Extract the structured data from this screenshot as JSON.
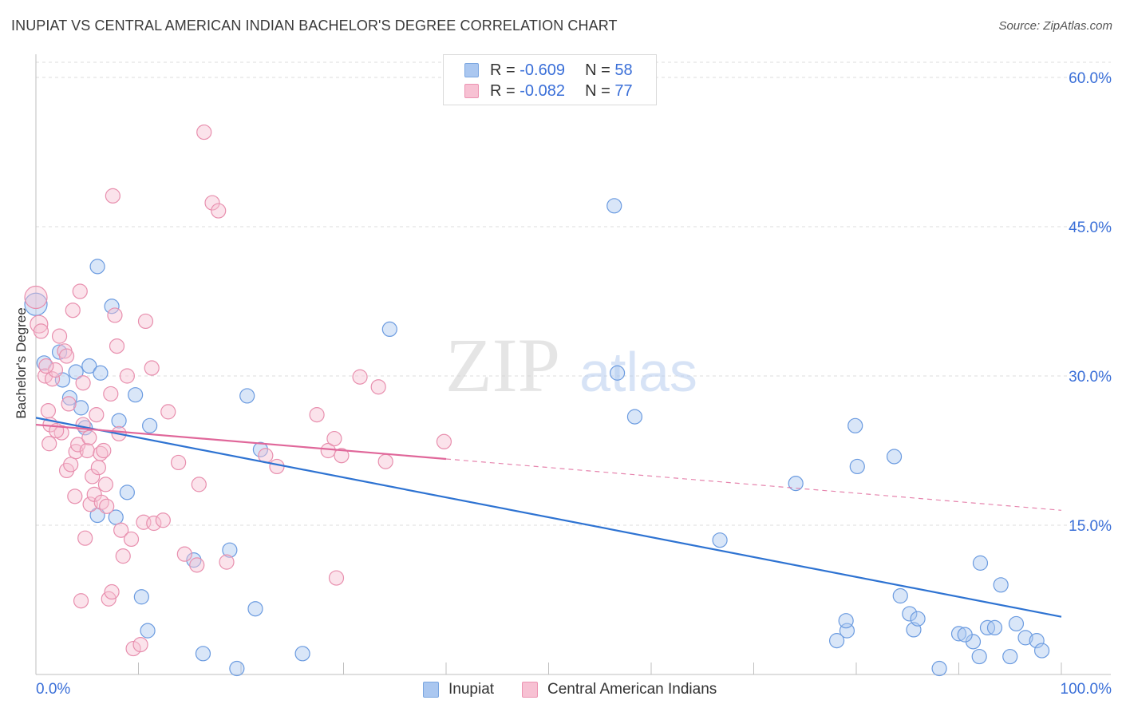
{
  "chart_data": {
    "type": "scatter",
    "title": "INUPIAT VS CENTRAL AMERICAN INDIAN BACHELOR'S DEGREE CORRELATION CHART",
    "source": "Source: ZipAtlas.com",
    "ylabel": "Bachelor's Degree",
    "xlim": [
      0,
      100
    ],
    "ylim": [
      0,
      60
    ],
    "x_tick_labels": [
      "0.0%",
      "100.0%"
    ],
    "y_ticks": [
      15,
      30,
      45,
      60
    ],
    "y_tick_labels": [
      "15.0%",
      "30.0%",
      "45.0%",
      "60.0%"
    ],
    "grid": true,
    "legend_placement": "bottom-center",
    "correlation_box": [
      {
        "r_label": "R =",
        "r_value": "-0.609",
        "n_label": "N =",
        "n_value": "58",
        "color": "#aac7f0",
        "border": "#7aa6e0"
      },
      {
        "r_label": "R =",
        "r_value": "-0.082",
        "n_label": "N =",
        "n_value": "77",
        "color": "#f7c1d3",
        "border": "#ec93b2"
      }
    ],
    "watermark": {
      "zip": "ZIP",
      "atlas": "atlas"
    },
    "series": [
      {
        "name": "Inupiat",
        "color": "#6b9be0",
        "fill": "rgba(170,199,240,0.45)",
        "line_color": "#2e73d2",
        "trend": {
          "x0": 0,
          "y0": 25.8,
          "x1": 100,
          "y1": 5.8,
          "dashed_from": null
        },
        "points": [
          [
            0,
            37.2,
            14
          ],
          [
            0.8,
            31.3,
            9
          ],
          [
            2.3,
            32.4,
            9
          ],
          [
            2.6,
            29.6,
            9
          ],
          [
            3.3,
            27.8,
            9
          ],
          [
            3.9,
            30.4,
            9
          ],
          [
            4.4,
            26.8,
            9
          ],
          [
            4.8,
            24.8,
            9
          ],
          [
            5.2,
            31.0,
            9
          ],
          [
            6.3,
            30.3,
            9
          ],
          [
            6.0,
            16.0,
            9
          ],
          [
            6.0,
            41.0,
            9
          ],
          [
            7.4,
            37.0,
            9
          ],
          [
            7.8,
            15.8,
            9
          ],
          [
            8.1,
            25.5,
            9
          ],
          [
            8.9,
            18.3,
            9
          ],
          [
            9.7,
            28.1,
            9
          ],
          [
            10.3,
            7.8,
            9
          ],
          [
            11.1,
            25.0,
            9
          ],
          [
            10.9,
            4.4,
            9
          ],
          [
            15.4,
            11.5,
            9
          ],
          [
            16.3,
            2.1,
            9
          ],
          [
            18.9,
            12.5,
            9
          ],
          [
            19.6,
            0.6,
            9
          ],
          [
            20.6,
            28.0,
            9
          ],
          [
            21.4,
            6.6,
            9
          ],
          [
            21.9,
            22.6,
            9
          ],
          [
            26.0,
            2.1,
            9
          ],
          [
            34.5,
            34.7,
            9
          ],
          [
            56.4,
            47.1,
            9
          ],
          [
            56.7,
            30.3,
            9
          ],
          [
            58.4,
            25.9,
            9
          ],
          [
            66.7,
            13.5,
            9
          ],
          [
            74.1,
            19.2,
            9
          ],
          [
            83.7,
            21.9,
            9
          ],
          [
            84.3,
            7.9,
            9
          ],
          [
            85.6,
            4.5,
            9
          ],
          [
            79.1,
            4.4,
            9
          ],
          [
            80.1,
            20.9,
            9
          ],
          [
            79.9,
            25.0,
            9
          ],
          [
            79.0,
            5.4,
            9
          ],
          [
            78.1,
            3.4,
            9
          ],
          [
            85.2,
            6.1,
            9
          ],
          [
            90.0,
            4.1,
            9
          ],
          [
            86.0,
            5.6,
            9
          ],
          [
            92.1,
            11.2,
            9
          ],
          [
            92.8,
            4.7,
            9
          ],
          [
            93.5,
            4.7,
            9
          ],
          [
            94.1,
            9.0,
            9
          ],
          [
            95.6,
            5.1,
            9
          ],
          [
            96.5,
            3.7,
            9
          ],
          [
            97.6,
            3.4,
            9
          ],
          [
            98.1,
            2.4,
            9
          ],
          [
            88.1,
            0.6,
            9
          ],
          [
            91.4,
            3.3,
            9
          ],
          [
            90.6,
            4.0,
            9
          ],
          [
            95.0,
            1.8,
            9
          ],
          [
            92.0,
            1.8,
            9
          ]
        ]
      },
      {
        "name": "Central American Indians",
        "color": "#e88fae",
        "fill": "rgba(247,193,211,0.45)",
        "line_color": "#e0679a",
        "trend": {
          "x0": 0,
          "y0": 25.1,
          "x1": 100,
          "y1": 16.5,
          "dashed_from": 40
        },
        "points": [
          [
            0,
            37.9,
            14
          ],
          [
            0.3,
            35.2,
            11
          ],
          [
            0.5,
            34.5,
            9
          ],
          [
            0.9,
            30.0,
            9
          ],
          [
            1.2,
            26.5,
            9
          ],
          [
            1.3,
            23.2,
            9
          ],
          [
            1.4,
            25.1,
            9
          ],
          [
            1.6,
            29.7,
            9
          ],
          [
            1.9,
            30.6,
            9
          ],
          [
            2.3,
            34.0,
            9
          ],
          [
            2.5,
            24.3,
            9
          ],
          [
            2.8,
            32.5,
            9
          ],
          [
            3.0,
            20.5,
            9
          ],
          [
            3.2,
            27.2,
            9
          ],
          [
            3.4,
            21.1,
            9
          ],
          [
            3.6,
            36.6,
            9
          ],
          [
            3.8,
            17.9,
            9
          ],
          [
            3.9,
            22.4,
            9
          ],
          [
            4.1,
            23.1,
            9
          ],
          [
            4.3,
            38.5,
            9
          ],
          [
            4.4,
            7.4,
            9
          ],
          [
            4.6,
            25.1,
            9
          ],
          [
            4.8,
            13.7,
            9
          ],
          [
            5.0,
            22.5,
            9
          ],
          [
            5.2,
            23.8,
            9
          ],
          [
            5.3,
            17.1,
            9
          ],
          [
            5.5,
            19.9,
            9
          ],
          [
            5.7,
            18.1,
            9
          ],
          [
            5.9,
            26.1,
            9
          ],
          [
            6.1,
            20.8,
            9
          ],
          [
            6.3,
            22.2,
            9
          ],
          [
            6.4,
            17.3,
            9
          ],
          [
            6.6,
            22.5,
            9
          ],
          [
            6.8,
            19.1,
            9
          ],
          [
            6.9,
            16.9,
            9
          ],
          [
            7.1,
            7.6,
            9
          ],
          [
            7.3,
            28.2,
            9
          ],
          [
            7.5,
            48.1,
            9
          ],
          [
            7.7,
            36.1,
            9
          ],
          [
            7.9,
            33.0,
            9
          ],
          [
            8.1,
            24.2,
            9
          ],
          [
            8.3,
            14.5,
            9
          ],
          [
            8.5,
            11.9,
            9
          ],
          [
            8.9,
            30.0,
            9
          ],
          [
            9.3,
            13.6,
            9
          ],
          [
            9.5,
            2.6,
            9
          ],
          [
            10.2,
            3.0,
            9
          ],
          [
            10.5,
            15.3,
            9
          ],
          [
            10.7,
            35.5,
            9
          ],
          [
            11.3,
            30.8,
            9
          ],
          [
            11.5,
            15.2,
            9
          ],
          [
            12.4,
            15.5,
            9
          ],
          [
            12.9,
            26.4,
            9
          ],
          [
            13.9,
            21.3,
            9
          ],
          [
            14.5,
            12.1,
            9
          ],
          [
            15.7,
            11.0,
            9
          ],
          [
            15.9,
            19.1,
            9
          ],
          [
            16.4,
            54.5,
            9
          ],
          [
            17.2,
            47.4,
            9
          ],
          [
            17.8,
            46.6,
            9
          ],
          [
            18.6,
            11.3,
            9
          ],
          [
            22.4,
            22.0,
            9
          ],
          [
            23.5,
            20.9,
            9
          ],
          [
            27.4,
            26.1,
            9
          ],
          [
            28.5,
            22.5,
            9
          ],
          [
            29.1,
            23.7,
            9
          ],
          [
            29.3,
            9.7,
            9
          ],
          [
            29.8,
            22.0,
            9
          ],
          [
            31.6,
            29.9,
            9
          ],
          [
            33.4,
            28.9,
            9
          ],
          [
            34.1,
            21.4,
            9
          ],
          [
            39.8,
            23.4,
            9
          ],
          [
            2.0,
            24.5,
            9
          ],
          [
            1.0,
            31.0,
            9
          ],
          [
            3.0,
            32.0,
            9
          ],
          [
            7.4,
            8.3,
            9
          ],
          [
            4.6,
            29.3,
            9
          ]
        ]
      }
    ]
  }
}
